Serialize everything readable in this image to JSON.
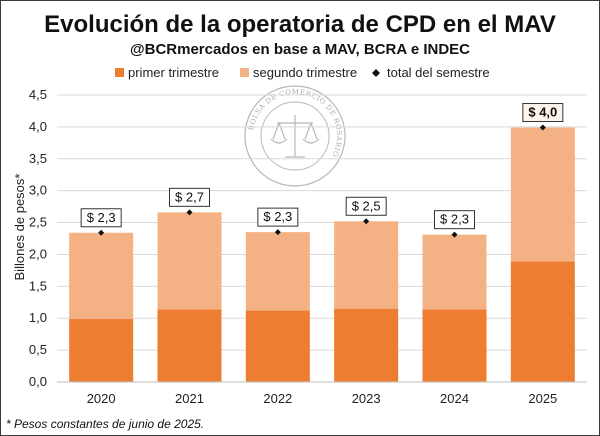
{
  "header": {
    "title": "Evolución de la operatoria de CPD en el MAV",
    "subtitle": "@BCRmercados en base a MAV, BCRA e INDEC"
  },
  "footnote": "* Pesos constantes de junio de 2025.",
  "watermark": {
    "text": "BOLSA DE COMERCIO DE ROSARIO",
    "icon": "scales-of-justice-seal"
  },
  "colors": {
    "primer": "#ED7D31",
    "segundo": "#F4B183",
    "total_marker": "#111111",
    "grid": "#d9d9d9",
    "axis": "#bfbfbf"
  },
  "chart_data": {
    "type": "bar",
    "stacked": true,
    "title": "Evolución de la operatoria de CPD en el MAV",
    "subtitle": "@BCRmercados en base a MAV, BCRA e INDEC",
    "xlabel": "",
    "ylabel": "Billones de pesos*",
    "categories": [
      "2020",
      "2021",
      "2022",
      "2023",
      "2024",
      "2025"
    ],
    "series": [
      {
        "name": "primer trimestre",
        "values": [
          0.99,
          1.14,
          1.12,
          1.15,
          1.14,
          1.89
        ]
      },
      {
        "name": "segundo trimestre",
        "values": [
          1.35,
          1.52,
          1.23,
          1.37,
          1.17,
          2.1
        ]
      }
    ],
    "markers": {
      "name": "total del semestre",
      "values": [
        2.34,
        2.66,
        2.35,
        2.52,
        2.31,
        3.99
      ]
    },
    "data_labels": [
      "$ 2,3",
      "$ 2,7",
      "$ 2,3",
      "$ 2,5",
      "$ 2,3",
      "$ 4,0"
    ],
    "highlight_label_index": 5,
    "ylim": [
      0,
      4.5
    ],
    "yticks": [
      "0,0",
      "0,5",
      "1,0",
      "1,5",
      "2,0",
      "2,5",
      "3,0",
      "3,5",
      "4,0",
      "4,5"
    ],
    "ytick_values": [
      0,
      0.5,
      1,
      1.5,
      2,
      2.5,
      3,
      3.5,
      4,
      4.5
    ],
    "grid": true,
    "legend_position": "top"
  }
}
